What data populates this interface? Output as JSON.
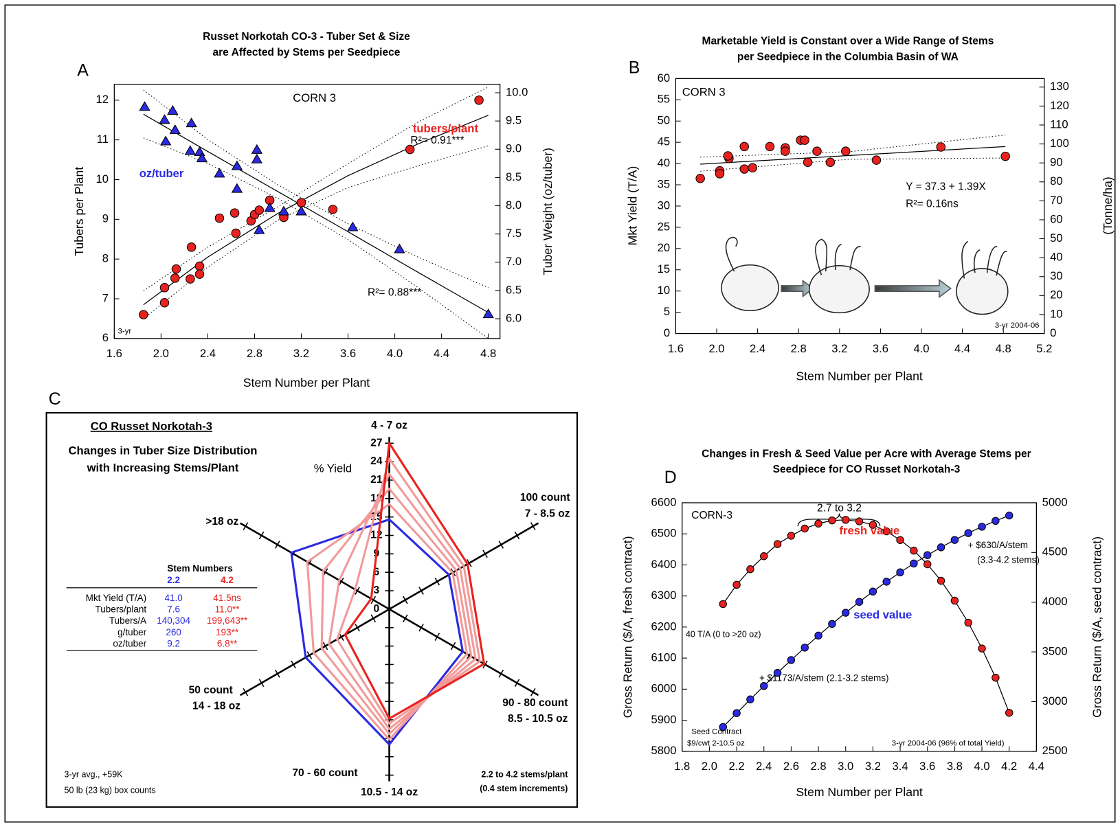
{
  "chart_data": [
    {
      "type": "scatter",
      "panel": "A",
      "title": [
        "Russet Norkotah CO-3 - Tuber Set & Size",
        "are Affected by Stems per Seedpiece"
      ],
      "xlabel": "Stem Number per Plant",
      "ylabel": "Tubers per Plant",
      "y2label": "Tuber Weight (oz/tuber)",
      "xlim": [
        1.6,
        4.9
      ],
      "ylim": [
        6,
        12.4
      ],
      "y2lim": [
        5.65,
        10.15
      ],
      "xticks": [
        1.6,
        {
          "value": 2.0,
          "label": "2.0"
        },
        2.4,
        2.8,
        3.2,
        3.6,
        {
          "value": 4.0,
          "label": "4.0"
        },
        4.4,
        4.8
      ],
      "yticks": [
        6,
        7,
        8,
        9,
        10,
        11,
        12
      ],
      "y2ticks": [
        {
          "value": 6.0,
          "label": "6.0"
        },
        6.5,
        {
          "value": 7.0,
          "label": "7.0"
        },
        7.5,
        {
          "value": 8.0,
          "label": "8.0"
        },
        8.5,
        {
          "value": 9.0,
          "label": "9.0"
        },
        9.5,
        {
          "value": 10.0,
          "label": "10.0"
        }
      ],
      "series": [
        {
          "name": "tubers/plant",
          "color": "#e8231f",
          "marker": "circle",
          "x": [
            1.85,
            2.03,
            2.03,
            2.12,
            2.13,
            2.25,
            2.26,
            2.33,
            2.33,
            2.5,
            2.63,
            2.64,
            2.77,
            2.8,
            2.84,
            2.93,
            3.05,
            3.2,
            3.47,
            4.13,
            4.72
          ],
          "values": [
            6.6,
            6.9,
            7.28,
            7.52,
            7.75,
            7.5,
            8.3,
            7.82,
            7.62,
            9.03,
            9.16,
            8.65,
            8.96,
            9.12,
            9.23,
            9.48,
            9.05,
            9.42,
            9.25,
            10.76,
            12.0
          ]
        },
        {
          "name": "oz/tuber",
          "color": "#2a2ae0",
          "marker": "triangle",
          "axis": "y2",
          "x": [
            1.86,
            2.03,
            2.04,
            2.1,
            2.12,
            2.25,
            2.26,
            2.33,
            2.35,
            2.5,
            2.65,
            2.65,
            2.82,
            2.82,
            2.84,
            2.93,
            3.05,
            3.2,
            3.64,
            4.04,
            4.8
          ],
          "values": [
            9.75,
            9.52,
            9.14,
            9.68,
            9.34,
            8.97,
            9.46,
            8.95,
            8.84,
            8.57,
            8.7,
            8.3,
            8.82,
            8.99,
            7.57,
            7.96,
            7.9,
            7.9,
            7.62,
            7.23,
            6.08
          ]
        }
      ],
      "fits": [
        {
          "axis": "y",
          "x": [
            1.85,
            2.4,
            3.0,
            3.6,
            4.2,
            4.8
          ],
          "values": [
            6.85,
            8.05,
            9.15,
            10.1,
            10.9,
            11.62
          ],
          "lower": [
            6.5,
            7.8,
            8.98,
            9.8,
            10.35,
            10.85
          ],
          "upper": [
            7.2,
            8.3,
            9.32,
            10.4,
            11.45,
            12.33
          ]
        },
        {
          "axis": "y2",
          "x": [
            1.85,
            2.4,
            3.0,
            3.6,
            4.2,
            4.8
          ],
          "values": [
            9.62,
            8.96,
            8.25,
            7.54,
            6.82,
            6.11
          ],
          "lower": [
            9.2,
            8.75,
            8.13,
            7.4,
            6.55,
            5.65
          ],
          "upper": [
            10.05,
            9.17,
            8.37,
            7.68,
            7.09,
            6.55
          ]
        }
      ],
      "annotations": [
        "CORN 3",
        "R²= 0.91***",
        "R²= 0.88***",
        "3-yr"
      ]
    },
    {
      "type": "scatter",
      "panel": "B",
      "title": [
        "Marketable Yield is Constant over a Wide Range of Stems",
        "per Seedpiece in the Columbia Basin of WA"
      ],
      "xlabel": "Stem Number per Plant",
      "ylabel": "Mkt Yield (T/A)",
      "y2label": "(Tonne/ha)",
      "xlim": [
        1.6,
        5.2
      ],
      "ylim": [
        0,
        60
      ],
      "y2lim": [
        0,
        134.5
      ],
      "xticks": [
        1.6,
        {
          "value": 2.0,
          "label": "2.0"
        },
        2.4,
        2.8,
        3.2,
        3.6,
        {
          "value": 4.0,
          "label": "4.0"
        },
        4.4,
        4.8,
        5.2
      ],
      "yticks": [
        0,
        5,
        10,
        15,
        20,
        25,
        30,
        35,
        40,
        45,
        50,
        55,
        60
      ],
      "y2ticks": [
        0,
        10,
        20,
        30,
        40,
        50,
        60,
        70,
        80,
        90,
        100,
        110,
        120,
        130
      ],
      "series": [
        {
          "color": "#e8231f",
          "marker": "circle",
          "x": [
            1.84,
            2.03,
            2.03,
            2.12,
            2.11,
            2.27,
            2.27,
            2.35,
            2.52,
            2.67,
            2.67,
            2.82,
            2.86,
            2.89,
            2.98,
            3.11,
            3.26,
            3.56,
            4.19,
            4.82
          ],
          "values": [
            36.5,
            38.3,
            37.6,
            41.2,
            41.8,
            44.0,
            38.7,
            39.0,
            44.0,
            43.7,
            42.9,
            45.5,
            45.5,
            40.3,
            42.9,
            40.3,
            42.9,
            40.8,
            43.9,
            41.7
          ]
        }
      ],
      "fits": [
        {
          "axis": "y",
          "x": [
            1.84,
            3.3,
            4.82
          ],
          "values": [
            39.86,
            41.89,
            44.0
          ],
          "lower": [
            38.2,
            41.0,
            41.3
          ],
          "upper": [
            41.5,
            42.8,
            46.7
          ]
        }
      ],
      "annotations": [
        "CORN 3",
        "Y = 37.3 + 1.39X",
        "R²= 0.16ns",
        "3-yr 2004-06"
      ]
    },
    {
      "type": "radar",
      "panel": "C",
      "title": "CO Russet Norkotah-3",
      "subtitle": [
        "Changes in Tuber Size Distribution",
        "with Increasing Stems/Plant"
      ],
      "rlabel": "% Yield",
      "categories": [
        [
          "4 - 7 oz"
        ],
        [
          "100 count",
          "7 - 8.5 oz"
        ],
        [
          "90 - 80 count",
          "8.5 - 10.5 oz"
        ],
        [
          "70 - 60 count",
          "10.5 - 14 oz"
        ],
        [
          "50 count",
          "14 - 18 oz"
        ],
        [
          ">18 oz"
        ]
      ],
      "rlim": [
        0,
        28
      ],
      "rticks": [
        0,
        3,
        6,
        9,
        12,
        15,
        18,
        21,
        24,
        27
      ],
      "series": [
        {
          "color": "#2a2ae0",
          "values": [
            14.6,
            11.2,
            13.8,
            22.0,
            15.7,
            18.4
          ]
        },
        {
          "color": "#f29a9a",
          "values": [
            17.1,
            11.9,
            14.6,
            21.2,
            14.2,
            15.4
          ]
        },
        {
          "color": "#f29a9a",
          "values": [
            19.6,
            12.6,
            15.4,
            20.3,
            12.7,
            12.4
          ]
        },
        {
          "color": "#f29a9a",
          "values": [
            22.0,
            13.3,
            16.2,
            19.5,
            11.3,
            9.4
          ]
        },
        {
          "color": "#f29a9a",
          "values": [
            24.5,
            14.0,
            17.0,
            18.6,
            9.8,
            6.4
          ]
        },
        {
          "color": "#e8231f",
          "values": [
            27.0,
            14.7,
            17.8,
            17.8,
            8.3,
            3.4
          ]
        }
      ],
      "table": {
        "header": "Stem Numbers",
        "columns": [
          "2.2",
          "4.2"
        ],
        "rows": [
          [
            "Mkt Yield (T/A)",
            "41.0",
            "41.5ns"
          ],
          [
            "Tubers/plant",
            "7.6",
            "11.0**"
          ],
          [
            "Tubers/A",
            "140,304",
            "199,643**"
          ],
          [
            "g/tuber",
            "260",
            "193**"
          ],
          [
            "oz/tuber",
            "9.2",
            "6.8**"
          ]
        ]
      },
      "annotations": [
        "3-yr avg., +59K",
        "50 lb (23 kg) box counts",
        "2.2 to 4.2 stems/plant",
        "(0.4 stem increments)"
      ]
    },
    {
      "type": "line",
      "panel": "D",
      "title": [
        "Changes in Fresh & Seed Value per Acre with Average Stems per",
        "Seedpiece for CO Russet Norkotah-3"
      ],
      "xlabel": "Stem Number per Plant",
      "ylabel": "Gross Return ($/A, fresh contract)",
      "y2label": "Gross Return ($/A, seed contract)",
      "xlim": [
        1.8,
        4.4
      ],
      "ylim": [
        5800,
        6600
      ],
      "y2lim": [
        2500,
        5000
      ],
      "xticks": [
        1.8,
        {
          "value": 2.0,
          "label": "2.0"
        },
        2.2,
        2.4,
        2.6,
        2.8,
        {
          "value": 3.0,
          "label": "3.0"
        },
        3.2,
        3.4,
        3.6,
        3.8,
        {
          "value": 4.0,
          "label": "4.0"
        },
        4.2,
        4.4
      ],
      "yticks": [
        5800,
        5900,
        6000,
        6100,
        6200,
        6300,
        6400,
        6500,
        6600
      ],
      "y2ticks": [
        2500,
        3000,
        3500,
        4000,
        4500,
        5000
      ],
      "x": [
        2.1,
        2.2,
        2.3,
        2.4,
        2.5,
        2.6,
        2.7,
        2.8,
        2.9,
        3.0,
        3.1,
        3.2,
        3.3,
        3.4,
        3.5,
        3.6,
        3.7,
        3.8,
        3.9,
        4.0,
        4.1,
        4.2
      ],
      "series": [
        {
          "name": "fresh value",
          "color": "#e8231f",
          "values": [
            6274,
            6336,
            6386,
            6428,
            6467,
            6494,
            6517,
            6533,
            6543,
            6545,
            6540,
            6529,
            6508,
            6480,
            6446,
            6402,
            6349,
            6285,
            6214,
            6131,
            6037,
            5924
          ]
        },
        {
          "name": "seed value",
          "color": "#2a2ae0",
          "axis": "y2",
          "values": [
            2744,
            2884,
            3022,
            3157,
            3289,
            3418,
            3543,
            3664,
            3781,
            3894,
            4003,
            4107,
            4206,
            4300,
            4389,
            4473,
            4552,
            4626,
            4695,
            4759,
            4818,
            4872
          ]
        }
      ],
      "annotations": [
        "CORN-3",
        "2.7 to 3.2",
        "+ $630/A/stem",
        "(3.3-4.2 stems)",
        "40 T/A  (0 to >20 oz)",
        "+ $1173/A/stem (2.1-3.2 stems)",
        "Seed Contract",
        "$9/cwt 2-10.5 oz",
        "3-yr 2004-06 (96% of total Yield)"
      ]
    }
  ]
}
